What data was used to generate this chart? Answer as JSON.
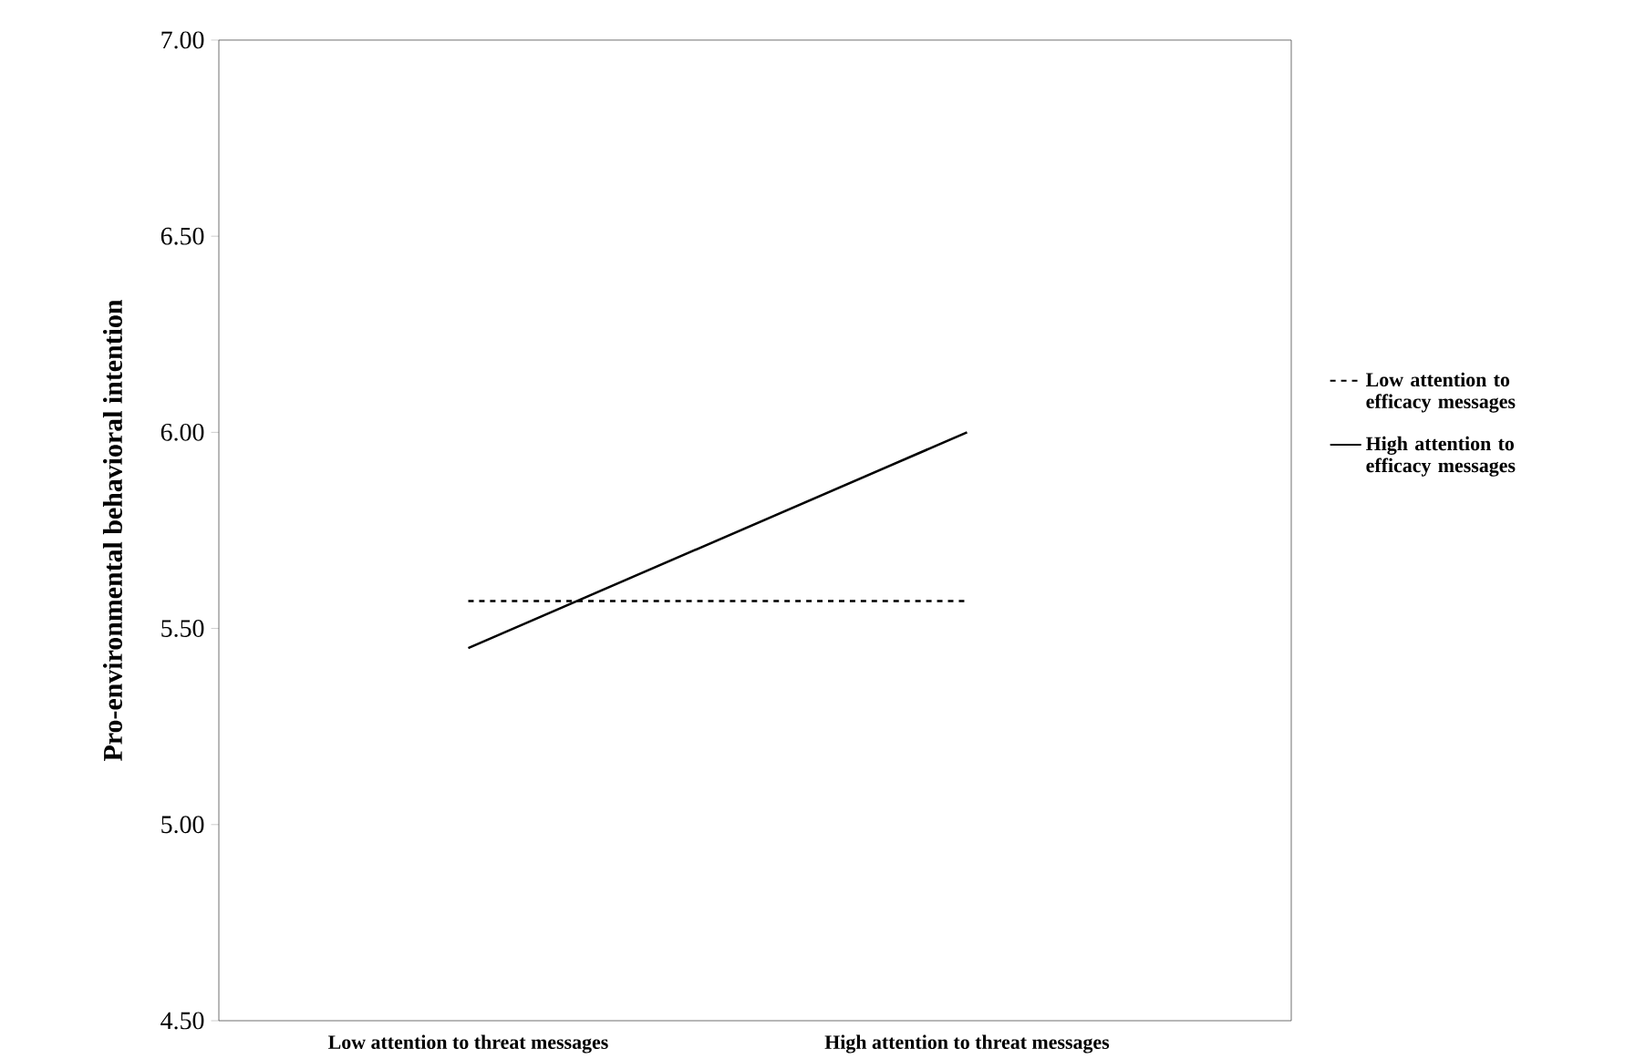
{
  "chart_data": {
    "type": "line",
    "ylabel": "Pro-environmental behavioral intention",
    "categories": [
      "Low attention to threat messages",
      "High attention to threat messages"
    ],
    "series": [
      {
        "name": "Low attention to efficacy messages",
        "color": "#000000",
        "line_style": "dashed",
        "values": [
          5.57,
          5.57
        ]
      },
      {
        "name": "High attention to efficacy messages",
        "color": "#000000",
        "line_style": "solid",
        "values": [
          5.45,
          6.0
        ]
      }
    ],
    "ylim": [
      4.5,
      7.0
    ],
    "yticks": [
      {
        "value": 4.5,
        "label": "4.50"
      },
      {
        "value": 5.0,
        "label": "5.00"
      },
      {
        "value": 5.5,
        "label": "5.50"
      },
      {
        "value": 6.0,
        "label": "6.00"
      },
      {
        "value": 6.5,
        "label": "6.50"
      },
      {
        "value": 7.0,
        "label": "7.00"
      }
    ],
    "grid": false,
    "marker": "none",
    "legend": "right"
  }
}
